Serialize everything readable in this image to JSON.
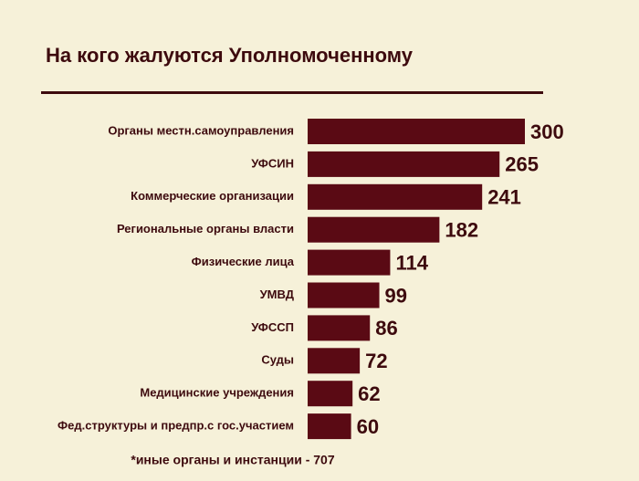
{
  "chart_data": {
    "type": "bar",
    "orientation": "horizontal",
    "title": "На кого жалуются Уполномоченному",
    "categories": [
      "Органы местн.самоуправления",
      "УФСИН",
      "Коммерческие организации",
      "Региональные органы власти",
      "Физические лица",
      "УМВД",
      "УФССП",
      "Суды",
      "Медицинские учреждения",
      "Фед.структуры и предпр.с гос.участием"
    ],
    "values": [
      300,
      265,
      241,
      182,
      114,
      99,
      86,
      72,
      62,
      60
    ],
    "color": "#5a0a14",
    "footnote": "*иные органы и инстанции - 707"
  }
}
